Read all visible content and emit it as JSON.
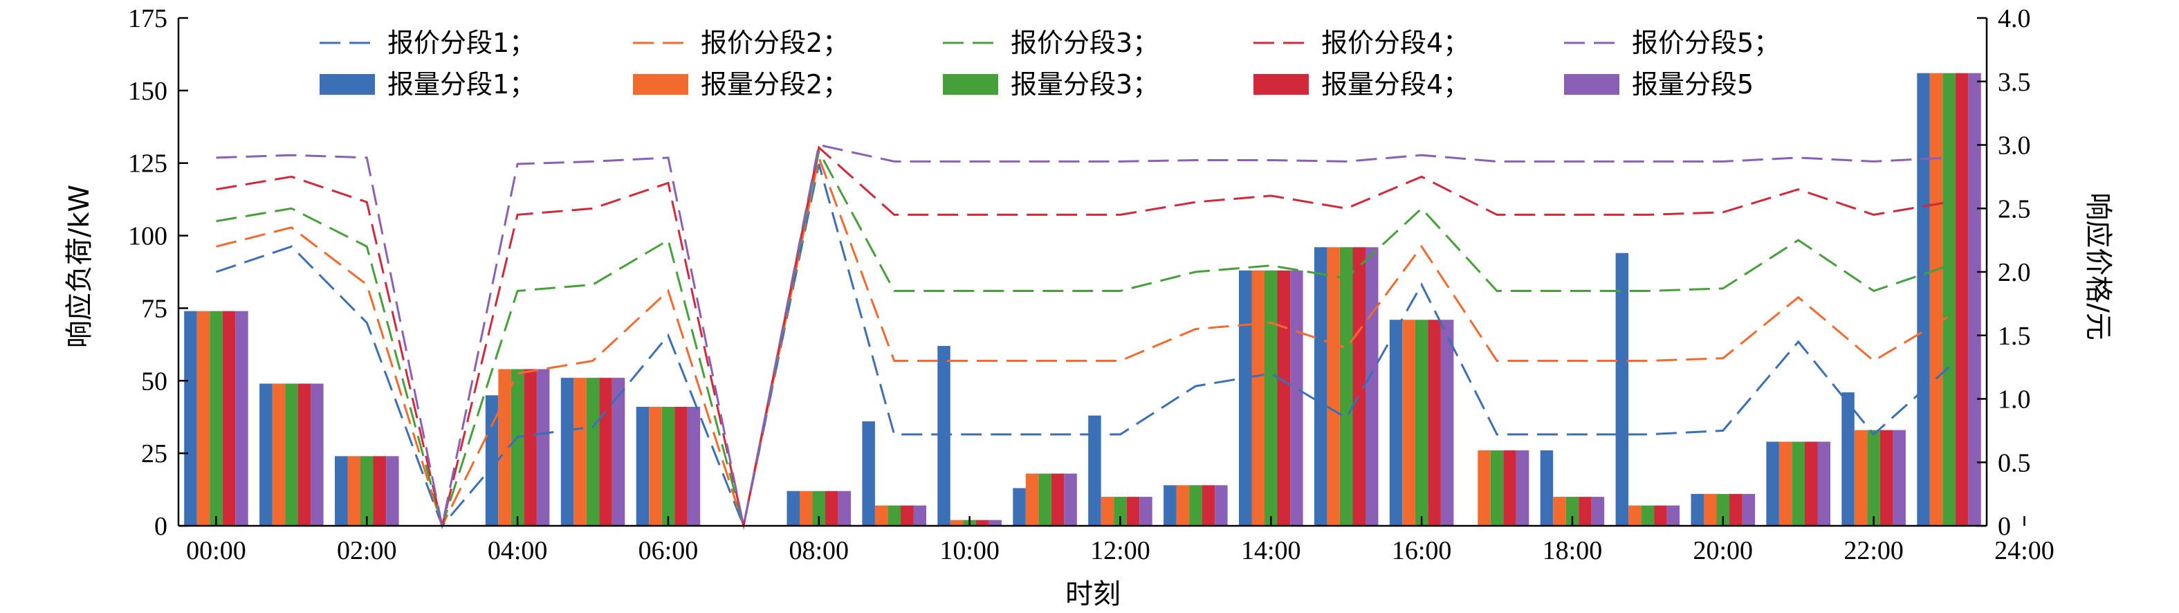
{
  "chart_data": {
    "type": "bar",
    "xlabel": "时刻",
    "ylabel_left": "响应负荷/kW",
    "ylabel_right": "响应价格/元",
    "ylim_left": [
      0,
      175
    ],
    "ylim_right": [
      0,
      4.0
    ],
    "xlim": [
      -0.5,
      23.5
    ],
    "left_ticks": [
      0,
      25,
      50,
      75,
      100,
      125,
      150,
      175
    ],
    "right_ticks": [
      0,
      0.5,
      1.0,
      1.5,
      2.0,
      2.5,
      3.0,
      3.5,
      4.0
    ],
    "right_tick_labels": [
      "0",
      "0.5",
      "1.0",
      "1.5",
      "2.0",
      "2.5",
      "3.0",
      "3.5",
      "4.0"
    ],
    "x_ticks": [
      "00:00",
      "02:00",
      "04:00",
      "06:00",
      "08:00",
      "10:00",
      "12:00",
      "14:00",
      "16:00",
      "18:00",
      "20:00",
      "22:00",
      "24:00"
    ],
    "colors": [
      "#3b6fb6",
      "#f26a2e",
      "#46a03a",
      "#d1283a",
      "#8a5fb5"
    ],
    "legend": {
      "position": "top",
      "price_labels": [
        "报价分段1；",
        "报价分段2；",
        "报价分段3；",
        "报价分段4；",
        "报价分段5；"
      ],
      "quantity_labels": [
        "报量分段1；",
        "报量分段2；",
        "报量分段3；",
        "报量分段4；",
        "报量分段5"
      ]
    },
    "hours": [
      0,
      1,
      2,
      3,
      4,
      5,
      6,
      7,
      8,
      9,
      10,
      11,
      12,
      13,
      14,
      15,
      16,
      17,
      18,
      19,
      20,
      21,
      22,
      23
    ],
    "quantity_series": [
      {
        "name": "报量分段1",
        "values": [
          74,
          49,
          24,
          0,
          45,
          51,
          41,
          0,
          12,
          36,
          62,
          13,
          38,
          14,
          88,
          96,
          71,
          0,
          26,
          94,
          11,
          29,
          46,
          156
        ]
      },
      {
        "name": "报量分段2",
        "values": [
          74,
          49,
          24,
          0,
          54,
          51,
          41,
          0,
          12,
          7,
          2,
          18,
          10,
          14,
          88,
          96,
          71,
          26,
          10,
          7,
          11,
          29,
          33,
          156
        ]
      },
      {
        "name": "报量分段3",
        "values": [
          74,
          49,
          24,
          0,
          54,
          51,
          41,
          0,
          12,
          7,
          2,
          18,
          10,
          14,
          88,
          96,
          71,
          26,
          10,
          7,
          11,
          29,
          33,
          156
        ]
      },
      {
        "name": "报量分段4",
        "values": [
          74,
          49,
          24,
          0,
          54,
          51,
          41,
          0,
          12,
          7,
          2,
          18,
          10,
          14,
          88,
          96,
          71,
          26,
          10,
          7,
          11,
          29,
          33,
          156
        ]
      },
      {
        "name": "报量分段5",
        "values": [
          74,
          49,
          24,
          0,
          54,
          51,
          41,
          0,
          12,
          7,
          2,
          18,
          10,
          14,
          88,
          96,
          71,
          26,
          10,
          7,
          11,
          29,
          33,
          156
        ]
      }
    ],
    "price_series": [
      {
        "name": "报价分段1",
        "values": [
          2.0,
          2.2,
          1.6,
          0.0,
          0.7,
          0.78,
          1.5,
          0.0,
          2.85,
          0.72,
          0.72,
          0.72,
          0.72,
          1.1,
          1.2,
          0.85,
          1.9,
          0.72,
          0.72,
          0.72,
          0.75,
          1.45,
          0.72,
          1.25
        ]
      },
      {
        "name": "报价分段2",
        "values": [
          2.2,
          2.35,
          1.9,
          0.0,
          1.2,
          1.3,
          1.85,
          0.0,
          2.9,
          1.3,
          1.3,
          1.3,
          1.3,
          1.55,
          1.6,
          1.4,
          2.2,
          1.3,
          1.3,
          1.3,
          1.32,
          1.8,
          1.3,
          1.65
        ]
      },
      {
        "name": "报价分段3",
        "values": [
          2.4,
          2.5,
          2.2,
          0.0,
          1.85,
          1.9,
          2.25,
          0.0,
          2.95,
          1.85,
          1.85,
          1.85,
          1.85,
          2.0,
          2.05,
          1.95,
          2.5,
          1.85,
          1.85,
          1.85,
          1.87,
          2.25,
          1.85,
          2.05
        ]
      },
      {
        "name": "报价分段4",
        "values": [
          2.65,
          2.75,
          2.55,
          0.0,
          2.45,
          2.5,
          2.7,
          0.0,
          2.98,
          2.45,
          2.45,
          2.45,
          2.45,
          2.55,
          2.6,
          2.5,
          2.75,
          2.45,
          2.45,
          2.45,
          2.47,
          2.65,
          2.45,
          2.55
        ]
      },
      {
        "name": "报价分段5",
        "values": [
          2.9,
          2.92,
          2.9,
          0.0,
          2.85,
          2.87,
          2.9,
          0.0,
          3.0,
          2.87,
          2.87,
          2.87,
          2.87,
          2.88,
          2.88,
          2.87,
          2.92,
          2.87,
          2.87,
          2.87,
          2.87,
          2.9,
          2.87,
          2.9
        ]
      }
    ]
  }
}
